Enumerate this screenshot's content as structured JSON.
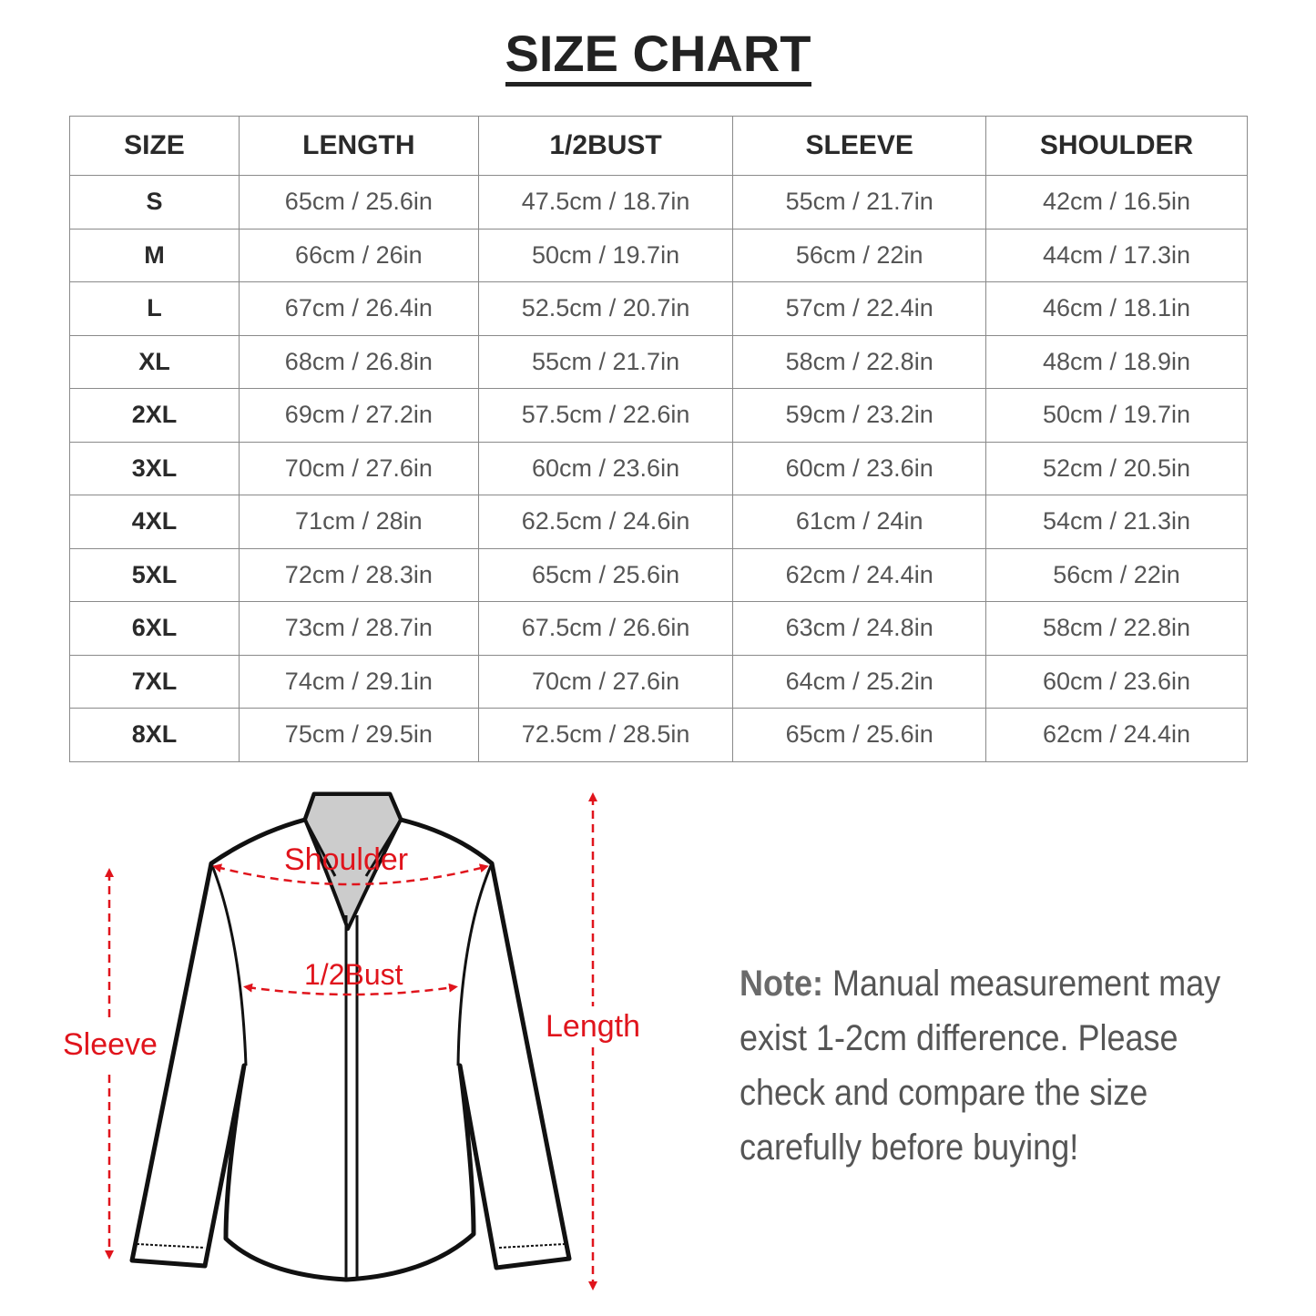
{
  "title": "SIZE CHART",
  "table": {
    "headers": [
      "SIZE",
      "LENGTH",
      "1/2BUST",
      "SLEEVE",
      "SHOULDER"
    ],
    "rows": [
      [
        "S",
        "65cm / 25.6in",
        "47.5cm / 18.7in",
        "55cm / 21.7in",
        "42cm / 16.5in"
      ],
      [
        "M",
        "66cm / 26in",
        "50cm / 19.7in",
        "56cm / 22in",
        "44cm / 17.3in"
      ],
      [
        "L",
        "67cm / 26.4in",
        "52.5cm / 20.7in",
        "57cm / 22.4in",
        "46cm / 18.1in"
      ],
      [
        "XL",
        "68cm / 26.8in",
        "55cm / 21.7in",
        "58cm / 22.8in",
        "48cm / 18.9in"
      ],
      [
        "2XL",
        "69cm / 27.2in",
        "57.5cm / 22.6in",
        "59cm / 23.2in",
        "50cm / 19.7in"
      ],
      [
        "3XL",
        "70cm / 27.6in",
        "60cm / 23.6in",
        "60cm / 23.6in",
        "52cm / 20.5in"
      ],
      [
        "4XL",
        "71cm / 28in",
        "62.5cm / 24.6in",
        "61cm / 24in",
        "54cm / 21.3in"
      ],
      [
        "5XL",
        "72cm / 28.3in",
        "65cm / 25.6in",
        "62cm / 24.4in",
        "56cm / 22in"
      ],
      [
        "6XL",
        "73cm / 28.7in",
        "67.5cm / 26.6in",
        "63cm / 24.8in",
        "58cm / 22.8in"
      ],
      [
        "7XL",
        "74cm / 29.1in",
        "70cm / 27.6in",
        "64cm / 25.2in",
        "60cm / 23.6in"
      ],
      [
        "8XL",
        "75cm / 29.5in",
        "72.5cm / 28.5in",
        "65cm / 25.6in",
        "62cm / 24.4in"
      ]
    ]
  },
  "diagram": {
    "shoulder": "Shoulder",
    "bust": "1/2Bust",
    "sleeve": "Sleeve",
    "length": "Length",
    "accent": "#e0141c"
  },
  "note": {
    "label": "Note:",
    "text": " Manual measurement may exist 1-2cm difference. Please check and compare the size carefully before buying!"
  }
}
